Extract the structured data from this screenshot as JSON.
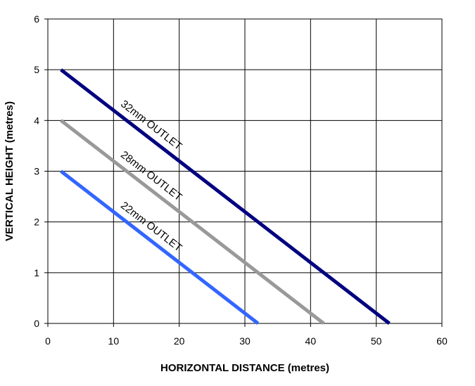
{
  "chart_data": {
    "type": "line",
    "title": "",
    "xlabel": "HORIZONTAL DISTANCE (metres)",
    "ylabel": "VERTICAL HEIGHT (metres)",
    "xlim": [
      0,
      60
    ],
    "ylim": [
      0,
      6
    ],
    "xticks": [
      "0",
      "10",
      "20",
      "30",
      "40",
      "50",
      "60"
    ],
    "yticks": [
      "0",
      "1",
      "2",
      "3",
      "4",
      "5",
      "6"
    ],
    "grid": true,
    "legend": "none",
    "series": [
      {
        "name": "32mm OUTLET",
        "color": "#000080",
        "points": [
          [
            2,
            5
          ],
          [
            52,
            0
          ]
        ],
        "label_position": [
          11,
          4.3
        ]
      },
      {
        "name": "28mm OUTLET",
        "color": "#999999",
        "points": [
          [
            2,
            4
          ],
          [
            42,
            0
          ]
        ],
        "label_position": [
          11,
          3.3
        ]
      },
      {
        "name": "22mm OUTLET",
        "color": "#3366FF",
        "points": [
          [
            2,
            3
          ],
          [
            32,
            0
          ]
        ],
        "label_position": [
          11,
          2.3
        ]
      }
    ]
  }
}
